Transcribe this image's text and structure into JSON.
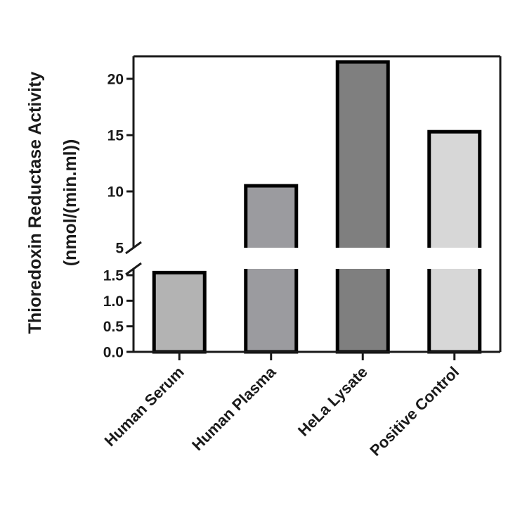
{
  "chart_data": {
    "type": "bar",
    "categories": [
      "Human Serum",
      "Human Plasma",
      "HeLa Lysate",
      "Positive Control"
    ],
    "values": [
      1.55,
      10.5,
      21.5,
      15.3
    ],
    "ylabel_line1": "Thioredoxin Reductase Activity",
    "ylabel_line2": "(nmol/(min.ml))",
    "axis_break": true,
    "lower_ylim": [
      0,
      1.6
    ],
    "upper_ylim": [
      5,
      22
    ],
    "lower_ticks": [
      "0.0",
      "0.5",
      "1.0",
      "1.5"
    ],
    "lower_tick_values": [
      0,
      0.5,
      1.0,
      1.5
    ],
    "upper_ticks": [
      "5",
      "10",
      "15",
      "20"
    ],
    "upper_tick_values": [
      5,
      10,
      15,
      20
    ],
    "colors": [
      "#b3b3b3",
      "#9b9b9f",
      "#7f7f7f",
      "#d7d7d7"
    ],
    "grid": false
  }
}
